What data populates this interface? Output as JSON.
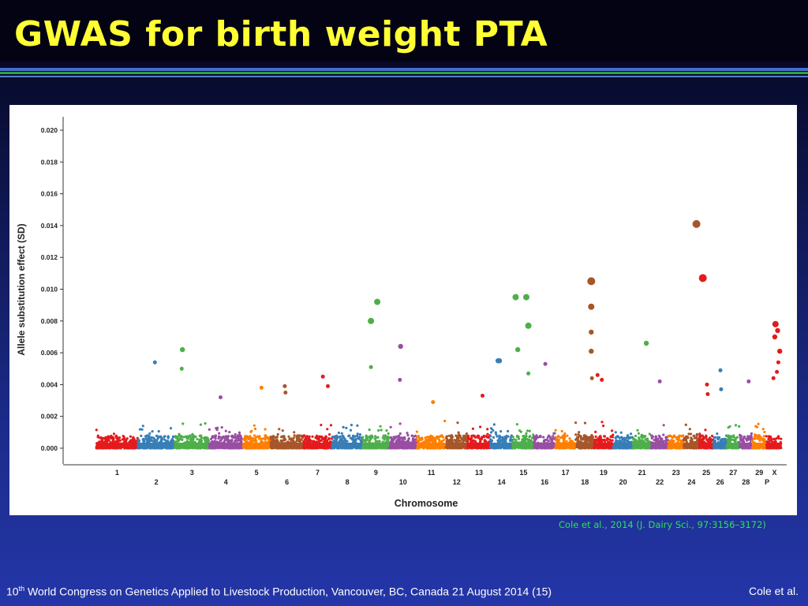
{
  "slide": {
    "title": "GWAS for birth weight PTA",
    "citation": "Cole et al., 2014 (J. Dairy Sci., 97:3156–3172)",
    "footer_number": "10",
    "footer_ordinal": "th",
    "footer_text": " World Congress on Genetics Applied to Livestock Production, Vancouver, BC, Canada 21 August 2014 (15)",
    "footer_right": "Cole et al."
  },
  "chart_data": {
    "type": "scatter",
    "subtype": "manhattan",
    "ylabel": "Allele substitution effect (SD)",
    "xlabel": "Chromosome",
    "ylim": [
      0,
      0.021
    ],
    "yticks": [
      0.0,
      0.002,
      0.004,
      0.006,
      0.008,
      0.01,
      0.012,
      0.014,
      0.016,
      0.018,
      0.02
    ],
    "ytick_labels": [
      "0.000",
      "0.002",
      "0.004",
      "0.006",
      "0.008",
      "0.010",
      "0.012",
      "0.014",
      "0.016",
      "0.018",
      "0.020"
    ],
    "grid": false,
    "baseline_height_typical": 0.0008,
    "palette": [
      "#e41a1c",
      "#377eb8",
      "#4daf4a",
      "#984ea3",
      "#ff7f00",
      "#a65628"
    ],
    "chromosomes": [
      {
        "label": "1",
        "row": 1,
        "color": "#e41a1c",
        "span": [
          0.0,
          5.9
        ]
      },
      {
        "label": "2",
        "row": 2,
        "color": "#377eb8",
        "span": [
          5.9,
          11.1
        ]
      },
      {
        "label": "3",
        "row": 1,
        "color": "#4daf4a",
        "span": [
          11.1,
          16.0
        ]
      },
      {
        "label": "4",
        "row": 2,
        "color": "#984ea3",
        "span": [
          16.0,
          20.7
        ]
      },
      {
        "label": "5",
        "row": 1,
        "color": "#ff7f00",
        "span": [
          20.7,
          24.7
        ]
      },
      {
        "label": "6",
        "row": 2,
        "color": "#a65628",
        "span": [
          24.7,
          29.3
        ]
      },
      {
        "label": "7",
        "row": 1,
        "color": "#e41a1c",
        "span": [
          29.3,
          33.4
        ]
      },
      {
        "label": "8",
        "row": 2,
        "color": "#377eb8",
        "span": [
          33.4,
          37.7
        ]
      },
      {
        "label": "9",
        "row": 1,
        "color": "#4daf4a",
        "span": [
          37.7,
          41.5
        ]
      },
      {
        "label": "10",
        "row": 2,
        "color": "#984ea3",
        "span": [
          41.5,
          45.4
        ]
      },
      {
        "label": "11",
        "row": 1,
        "color": "#ff7f00",
        "span": [
          45.4,
          49.5
        ]
      },
      {
        "label": "12",
        "row": 2,
        "color": "#a65628",
        "span": [
          49.5,
          52.6
        ]
      },
      {
        "label": "13",
        "row": 1,
        "color": "#e41a1c",
        "span": [
          52.6,
          55.8
        ]
      },
      {
        "label": "14",
        "row": 2,
        "color": "#377eb8",
        "span": [
          55.8,
          59.0
        ]
      },
      {
        "label": "15",
        "row": 1,
        "color": "#4daf4a",
        "span": [
          59.0,
          62.0
        ]
      },
      {
        "label": "16",
        "row": 2,
        "color": "#984ea3",
        "span": [
          62.0,
          65.0
        ]
      },
      {
        "label": "17",
        "row": 1,
        "color": "#ff7f00",
        "span": [
          65.0,
          67.9
        ]
      },
      {
        "label": "18",
        "row": 2,
        "color": "#a65628",
        "span": [
          67.9,
          70.5
        ]
      },
      {
        "label": "19",
        "row": 1,
        "color": "#e41a1c",
        "span": [
          70.5,
          73.2
        ]
      },
      {
        "label": "20",
        "row": 2,
        "color": "#377eb8",
        "span": [
          73.2,
          76.0
        ]
      },
      {
        "label": "21",
        "row": 1,
        "color": "#4daf4a",
        "span": [
          76.0,
          78.6
        ]
      },
      {
        "label": "22",
        "row": 2,
        "color": "#984ea3",
        "span": [
          78.6,
          81.0
        ]
      },
      {
        "label": "23",
        "row": 1,
        "color": "#ff7f00",
        "span": [
          81.0,
          83.2
        ]
      },
      {
        "label": "24",
        "row": 2,
        "color": "#a65628",
        "span": [
          83.2,
          85.4
        ]
      },
      {
        "label": "25",
        "row": 1,
        "color": "#e41a1c",
        "span": [
          85.4,
          87.4
        ]
      },
      {
        "label": "26",
        "row": 2,
        "color": "#377eb8",
        "span": [
          87.4,
          89.3
        ]
      },
      {
        "label": "27",
        "row": 1,
        "color": "#4daf4a",
        "span": [
          89.3,
          91.1
        ]
      },
      {
        "label": "28",
        "row": 2,
        "color": "#984ea3",
        "span": [
          91.1,
          92.9
        ]
      },
      {
        "label": "29",
        "row": 1,
        "color": "#ff7f00",
        "span": [
          92.9,
          94.9
        ]
      },
      {
        "label": "X",
        "row": 1,
        "color": "#e41a1c",
        "span": [
          95.1,
          97.0
        ]
      },
      {
        "label": "P",
        "row": 2,
        "color": "#e41a1c",
        "span": [
          94.9,
          95.1
        ]
      }
    ],
    "notable_points": [
      {
        "chr": "2",
        "pos": 8.3,
        "y": 0.0054
      },
      {
        "chr": "3",
        "pos": 12.2,
        "y": 0.0062
      },
      {
        "chr": "3",
        "pos": 12.1,
        "y": 0.005
      },
      {
        "chr": "4",
        "pos": 17.6,
        "y": 0.0032
      },
      {
        "chr": "5",
        "pos": 23.4,
        "y": 0.0038
      },
      {
        "chr": "6",
        "pos": 26.7,
        "y": 0.0039
      },
      {
        "chr": "6",
        "pos": 26.8,
        "y": 0.0035
      },
      {
        "chr": "7",
        "pos": 32.1,
        "y": 0.0045
      },
      {
        "chr": "7",
        "pos": 32.8,
        "y": 0.0039
      },
      {
        "chr": "9",
        "pos": 38.9,
        "y": 0.008
      },
      {
        "chr": "9",
        "pos": 39.8,
        "y": 0.0092
      },
      {
        "chr": "9",
        "pos": 38.9,
        "y": 0.0051
      },
      {
        "chr": "10",
        "pos": 43.1,
        "y": 0.0064
      },
      {
        "chr": "10",
        "pos": 43.0,
        "y": 0.0043
      },
      {
        "chr": "11",
        "pos": 47.7,
        "y": 0.0029
      },
      {
        "chr": "13",
        "pos": 54.7,
        "y": 0.0033
      },
      {
        "chr": "14",
        "pos": 56.9,
        "y": 0.0055
      },
      {
        "chr": "14",
        "pos": 57.1,
        "y": 0.0055
      },
      {
        "chr": "15",
        "pos": 59.4,
        "y": 0.0095
      },
      {
        "chr": "15",
        "pos": 60.9,
        "y": 0.0095
      },
      {
        "chr": "15",
        "pos": 61.2,
        "y": 0.0077
      },
      {
        "chr": "15",
        "pos": 59.7,
        "y": 0.0062
      },
      {
        "chr": "15",
        "pos": 61.2,
        "y": 0.0047
      },
      {
        "chr": "16",
        "pos": 63.6,
        "y": 0.0053
      },
      {
        "chr": "18",
        "pos": 70.1,
        "y": 0.0105
      },
      {
        "chr": "18",
        "pos": 70.1,
        "y": 0.0089
      },
      {
        "chr": "18",
        "pos": 70.1,
        "y": 0.0073
      },
      {
        "chr": "18",
        "pos": 70.1,
        "y": 0.0061
      },
      {
        "chr": "18",
        "pos": 70.2,
        "y": 0.0044
      },
      {
        "chr": "19",
        "pos": 71.0,
        "y": 0.0046
      },
      {
        "chr": "19",
        "pos": 71.6,
        "y": 0.0043
      },
      {
        "chr": "21",
        "pos": 77.9,
        "y": 0.0066
      },
      {
        "chr": "22",
        "pos": 79.8,
        "y": 0.0042
      },
      {
        "chr": "24",
        "pos": 85.0,
        "y": 0.0141
      },
      {
        "chr": "25",
        "pos": 85.9,
        "y": 0.0107
      },
      {
        "chr": "25",
        "pos": 86.5,
        "y": 0.004
      },
      {
        "chr": "25",
        "pos": 86.6,
        "y": 0.0034
      },
      {
        "chr": "26",
        "pos": 88.4,
        "y": 0.0049
      },
      {
        "chr": "26",
        "pos": 88.5,
        "y": 0.0037
      },
      {
        "chr": "28",
        "pos": 92.4,
        "y": 0.0042
      },
      {
        "chr": "X",
        "pos": 96.2,
        "y": 0.0078
      },
      {
        "chr": "X",
        "pos": 96.5,
        "y": 0.0074
      },
      {
        "chr": "X",
        "pos": 96.1,
        "y": 0.007
      },
      {
        "chr": "X",
        "pos": 96.8,
        "y": 0.0061
      },
      {
        "chr": "X",
        "pos": 96.6,
        "y": 0.0054
      },
      {
        "chr": "X",
        "pos": 96.4,
        "y": 0.0048
      },
      {
        "chr": "X",
        "pos": 95.9,
        "y": 0.0044
      }
    ]
  }
}
